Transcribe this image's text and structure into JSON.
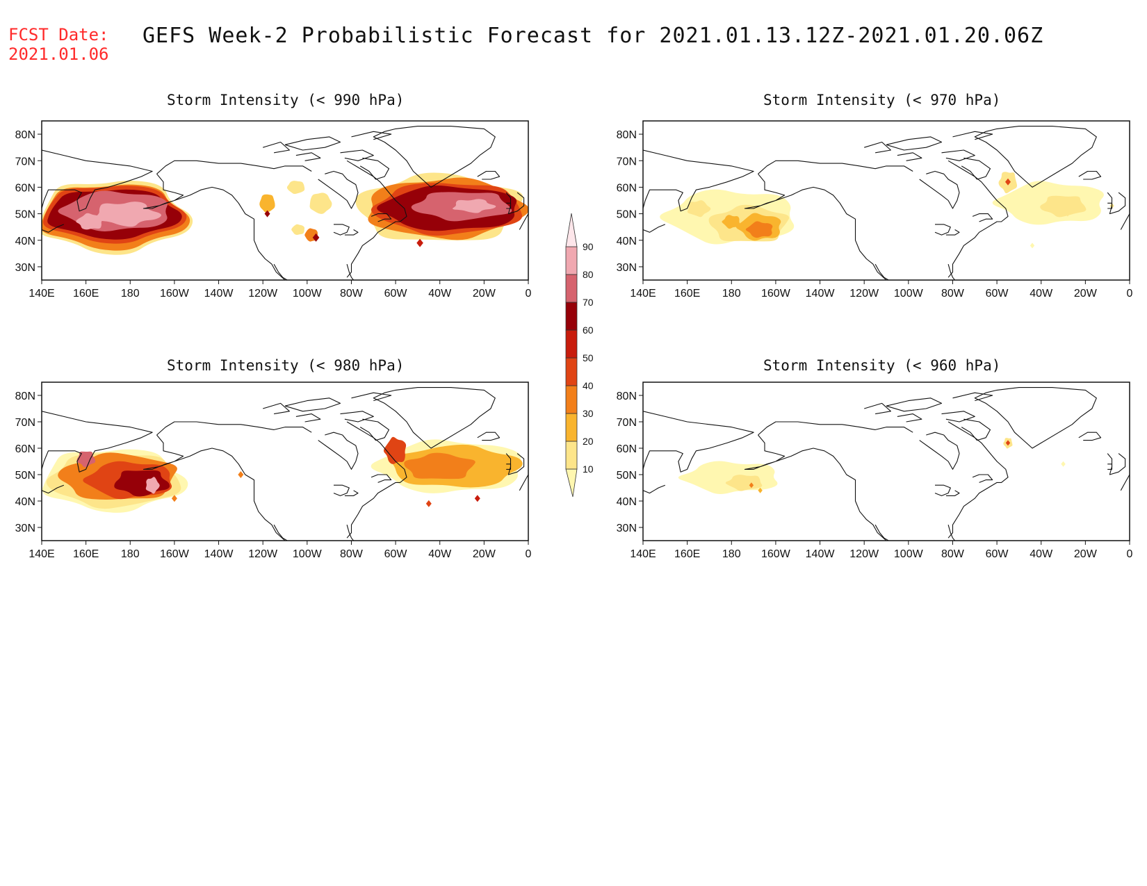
{
  "header": {
    "fcst_label": "FCST Date:",
    "fcst_date": "2021.01.06",
    "title": "GEFS Week-2 Probabilistic Forecast for 2021.01.13.12Z-2021.01.20.06Z"
  },
  "panels": [
    {
      "title": "Storm Intensity (< 990 hPa)"
    },
    {
      "title": "Storm Intensity (< 970 hPa)"
    },
    {
      "title": "Storm Intensity (< 980 hPa)"
    },
    {
      "title": "Storm Intensity (< 960 hPa)"
    }
  ],
  "axes": {
    "lat_ticks": [
      "80N",
      "70N",
      "60N",
      "50N",
      "40N",
      "30N"
    ],
    "lon_ticks": [
      "140E",
      "160E",
      "180",
      "160W",
      "140W",
      "120W",
      "100W",
      "80W",
      "60W",
      "40W",
      "20W",
      "0"
    ]
  },
  "colorbar": {
    "levels": [
      "10",
      "20",
      "30",
      "40",
      "50",
      "60",
      "70",
      "80",
      "90"
    ],
    "colors": [
      "#fff7b0",
      "#fde58a",
      "#f9b42e",
      "#f27f1a",
      "#e04414",
      "#c81c0c",
      "#960008",
      "#d6636e",
      "#f0a8b0",
      "#fde6ea"
    ]
  }
}
